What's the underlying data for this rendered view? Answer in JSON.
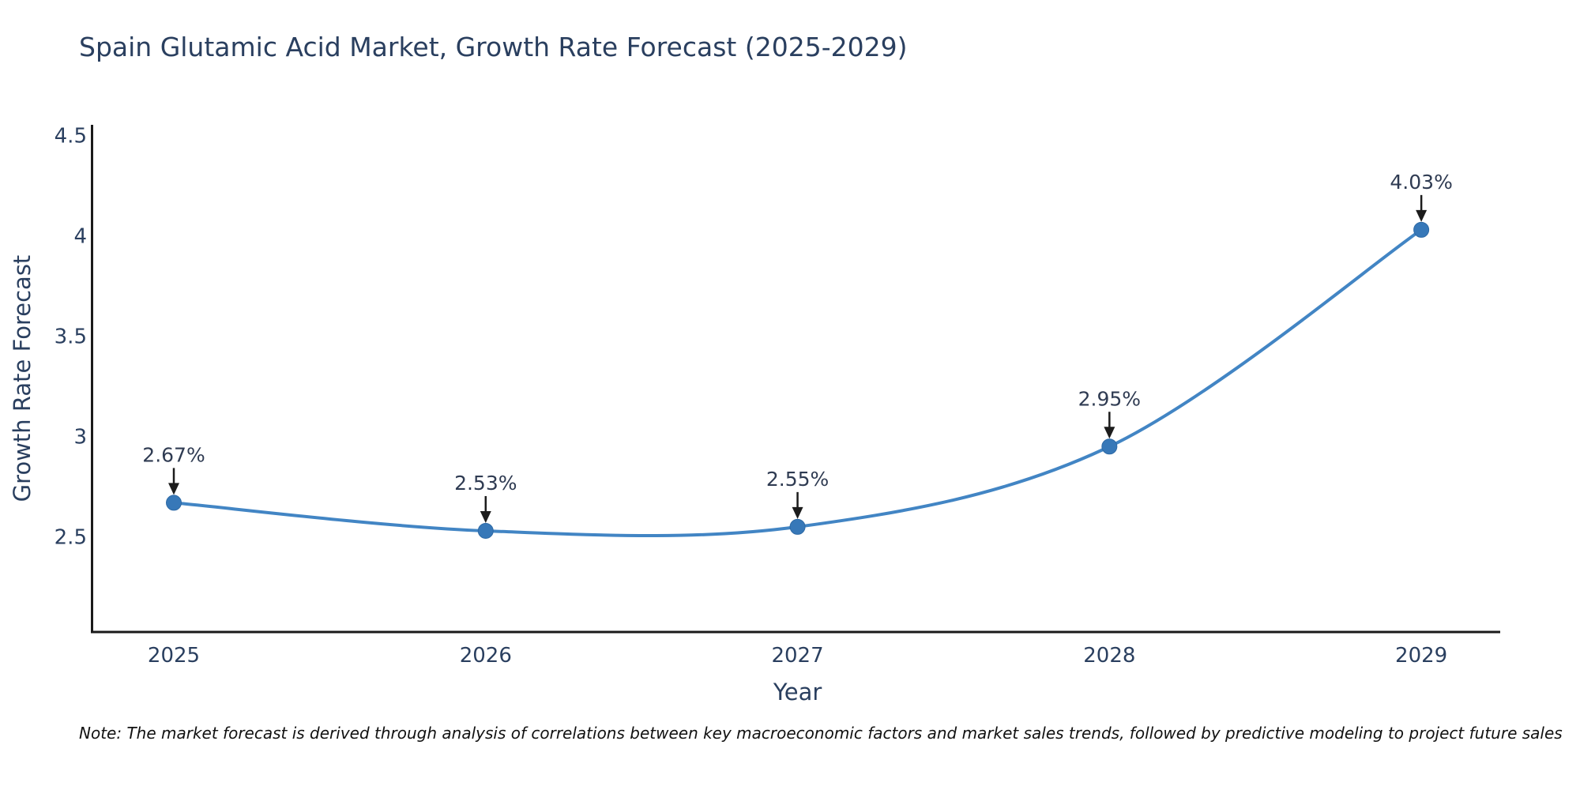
{
  "title": "Spain Glutamic Acid Market, Growth Rate Forecast (2025-2029)",
  "note": "Note: The market forecast is derived through analysis of correlations between key macroeconomic factors and market sales trends, followed by predictive modeling to project future sales",
  "chart_data": {
    "type": "line",
    "line_shape": "spline",
    "x": [
      2025,
      2026,
      2027,
      2028,
      2029
    ],
    "values": [
      2.67,
      2.53,
      2.55,
      2.95,
      4.03
    ],
    "point_labels": [
      "2.67%",
      "2.53%",
      "2.55%",
      "2.95%",
      "4.03%"
    ],
    "xlabel": "Year",
    "ylabel": "Growth Rate Forecast",
    "yticks": [
      2.5,
      3,
      3.5,
      4,
      4.5
    ],
    "ytick_labels": [
      "2.5",
      "3",
      "3.5",
      "4",
      "4.5"
    ],
    "xtick_labels": [
      "2025",
      "2026",
      "2027",
      "2028",
      "2029"
    ],
    "xlim": [
      2024.734,
      2029.253
    ],
    "ylim": [
      2.026,
      4.553
    ],
    "grid": false,
    "legend": "none",
    "colors": {
      "line": "#4285c4",
      "marker": "#3778b8",
      "marker_edge": "#2e6aa6",
      "axis": "#1a1a1a",
      "tick_label": "#2a3f5f",
      "axis_title": "#2a3f5f",
      "annotation_text": "#2f3b52",
      "annotation_arrow": "#1c1c1c"
    }
  }
}
